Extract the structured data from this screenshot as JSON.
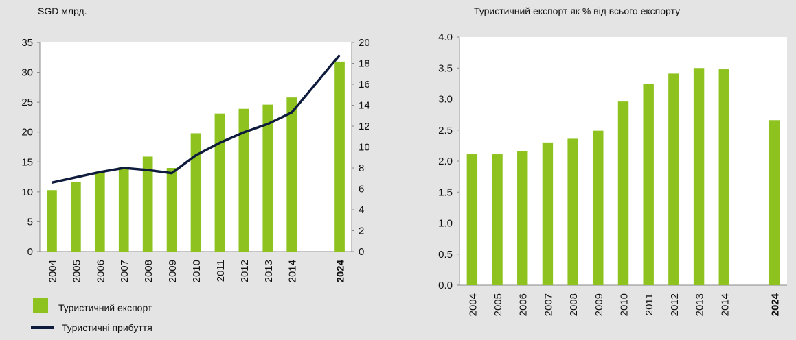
{
  "colors": {
    "bar": "#8dc21f",
    "line": "#0f1b3d",
    "background": "#e4e4e4",
    "plot_background": "#ffffff"
  },
  "chart_data": [
    {
      "type": "bar",
      "title": "",
      "unit_label": "SGD млрд.",
      "categories": [
        "2004",
        "2005",
        "2006",
        "2007",
        "2008",
        "2009",
        "2010",
        "2011",
        "2012",
        "2013",
        "2014",
        "2024"
      ],
      "bold_categories": [
        "2024"
      ],
      "gap_before_last": true,
      "ylim": [
        0,
        35
      ],
      "yticks": [
        "0",
        "5",
        "10",
        "15",
        "20",
        "25",
        "30",
        "35"
      ],
      "y2lim": [
        0,
        20
      ],
      "y2ticks": [
        "0",
        "2",
        "4",
        "6",
        "8",
        "10",
        "12",
        "14",
        "16",
        "18",
        "20"
      ],
      "grid": false,
      "legend_position": "bottom-left",
      "series": [
        {
          "name": "Туристичний експорт",
          "kind": "bar",
          "axis": "left",
          "values": [
            10.3,
            11.6,
            13.3,
            14.2,
            15.9,
            14.0,
            19.8,
            23.1,
            23.9,
            24.6,
            25.8,
            31.8
          ]
        },
        {
          "name": "Туристичні прибуття",
          "kind": "line",
          "axis": "right",
          "values": [
            6.6,
            7.1,
            7.6,
            8.0,
            7.8,
            7.5,
            9.2,
            10.4,
            11.4,
            12.2,
            13.3,
            18.8
          ]
        }
      ]
    },
    {
      "type": "bar",
      "title": "Туристичний експорт як % від всього експорту",
      "categories": [
        "2004",
        "2005",
        "2006",
        "2007",
        "2008",
        "2009",
        "2010",
        "2011",
        "2012",
        "2013",
        "2014",
        "2024"
      ],
      "bold_categories": [
        "2024"
      ],
      "gap_before_last": true,
      "ylim": [
        0,
        4.0
      ],
      "yticks": [
        "0.0",
        "0.5",
        "1.0",
        "1.5",
        "2.0",
        "2.5",
        "3.0",
        "3.5",
        "4.0"
      ],
      "grid": false,
      "series": [
        {
          "kind": "bar",
          "values": [
            2.11,
            2.11,
            2.16,
            2.3,
            2.36,
            2.49,
            2.96,
            3.24,
            3.41,
            3.5,
            3.48,
            2.66
          ]
        }
      ]
    }
  ]
}
